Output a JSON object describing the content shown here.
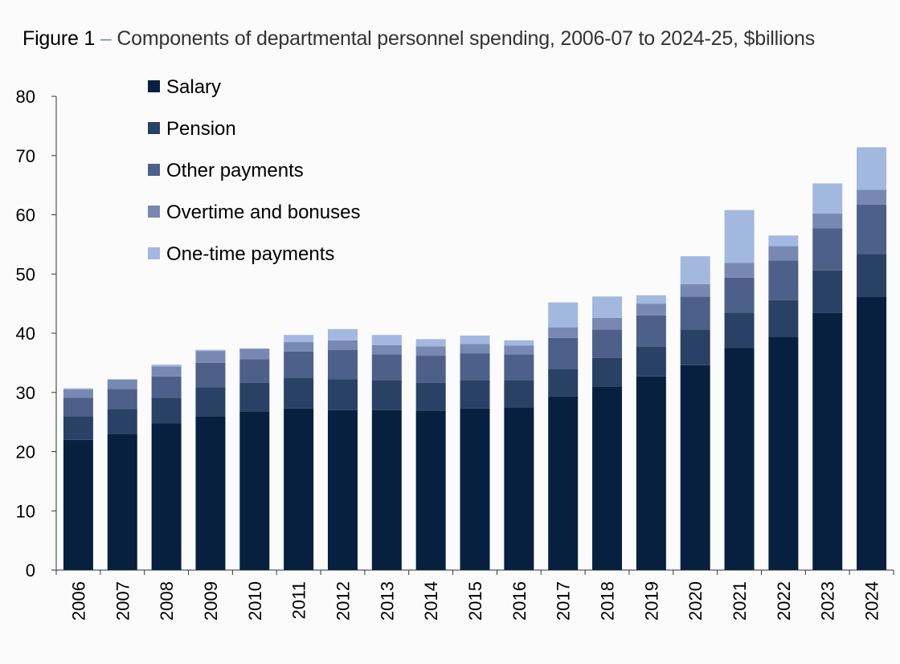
{
  "title": {
    "figure": "Figure 1",
    "dash": " – ",
    "text": "Components of departmental personnel spending, 2006-07 to 2024-25, $billions"
  },
  "chart_data": {
    "type": "bar",
    "stacked": true,
    "categories": [
      "2006",
      "2007",
      "2008",
      "2009",
      "2010",
      "2011",
      "2012",
      "2013",
      "2014",
      "2015",
      "2016",
      "2017",
      "2018",
      "2019",
      "2020",
      "2021",
      "2022",
      "2023",
      "2024"
    ],
    "ylim": [
      0,
      80
    ],
    "yticks": [
      0,
      10,
      20,
      30,
      40,
      50,
      60,
      70,
      80
    ],
    "legend_position": "top-left",
    "grid": false,
    "series": [
      {
        "name": "Salary",
        "color": "#07203f",
        "values": [
          22.0,
          23.0,
          24.8,
          26.0,
          26.8,
          27.3,
          27.0,
          27.0,
          26.9,
          27.3,
          27.5,
          29.3,
          31.0,
          32.7,
          34.6,
          37.5,
          39.4,
          43.4,
          46.1
        ]
      },
      {
        "name": "Pension",
        "color": "#2a4166",
        "values": [
          4.0,
          4.2,
          4.3,
          4.9,
          4.8,
          5.2,
          5.2,
          5.0,
          4.7,
          4.7,
          4.5,
          4.7,
          4.8,
          5.0,
          6.0,
          6.0,
          6.2,
          7.2,
          7.3
        ]
      },
      {
        "name": "Other payments",
        "color": "#4d6089",
        "values": [
          3.1,
          3.4,
          3.6,
          4.1,
          4.0,
          4.4,
          5.0,
          4.4,
          4.6,
          4.6,
          4.4,
          5.2,
          4.8,
          5.3,
          5.6,
          5.9,
          6.7,
          7.1,
          8.3
        ]
      },
      {
        "name": "Overtime and bonuses",
        "color": "#7789b2",
        "values": [
          1.4,
          1.6,
          1.7,
          2.0,
          1.8,
          1.6,
          1.6,
          1.6,
          1.6,
          1.6,
          1.5,
          1.8,
          2.0,
          2.0,
          2.1,
          2.5,
          2.4,
          2.5,
          2.5
        ]
      },
      {
        "name": "One-time payments",
        "color": "#a3b8df",
        "values": [
          0.2,
          0.0,
          0.3,
          0.2,
          0.0,
          1.2,
          1.9,
          1.7,
          1.2,
          1.4,
          0.9,
          4.2,
          3.6,
          1.4,
          4.7,
          8.9,
          1.8,
          5.1,
          7.2
        ]
      }
    ]
  }
}
